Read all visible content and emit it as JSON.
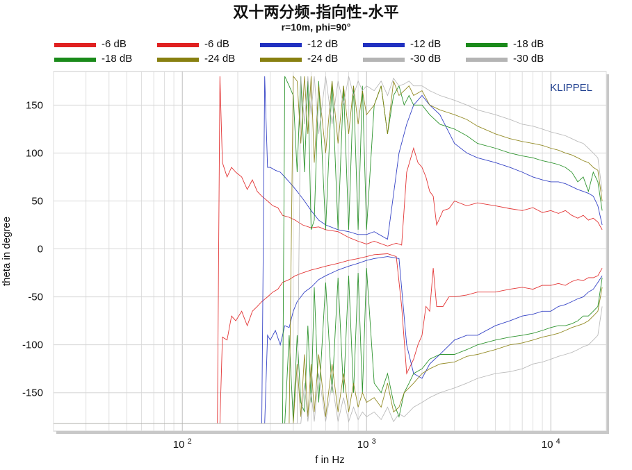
{
  "title": "双十两分频-指向性-水平",
  "subtitle": "r=10m, phi=90°",
  "watermark": "KLIPPEL",
  "legend": [
    {
      "label": "-6 dB",
      "color": "#e02020"
    },
    {
      "label": "-6 dB",
      "color": "#e02020"
    },
    {
      "label": "-12 dB",
      "color": "#2030c0"
    },
    {
      "label": "-12 dB",
      "color": "#2030c0"
    },
    {
      "label": "-18 dB",
      "color": "#1a8a1a"
    },
    {
      "label": "-18 dB",
      "color": "#1a8a1a"
    },
    {
      "label": "-24 dB",
      "color": "#888010"
    },
    {
      "label": "-24 dB",
      "color": "#888010"
    },
    {
      "label": "-30 dB",
      "color": "#b4b4b4"
    },
    {
      "label": "-30 dB",
      "color": "#b4b4b4"
    }
  ],
  "chart_data": {
    "type": "line",
    "xscale": "log",
    "xlabel": "f in Hz",
    "ylabel": "theta in degree",
    "xlim": [
      20,
      20000
    ],
    "ylim": [
      -190,
      185
    ],
    "yticks": [
      150,
      100,
      50,
      0,
      -50,
      -100,
      -150
    ],
    "xticks": [
      {
        "value": 100,
        "base": "10",
        "exp": "2"
      },
      {
        "value": 1000,
        "base": "10",
        "exp": "3"
      },
      {
        "value": 10000,
        "base": "10",
        "exp": "4"
      }
    ],
    "grid": true,
    "series": [
      {
        "name": "-6 dB",
        "color": "#e02020",
        "x": [
          20,
          155,
          160,
          165,
          175,
          185,
          195,
          210,
          225,
          240,
          255,
          270,
          290,
          310,
          330,
          350,
          380,
          410,
          450,
          500,
          550,
          600,
          700,
          800,
          900,
          1000,
          1100,
          1300,
          1450,
          1550,
          1650,
          1800,
          1900,
          2000,
          2100,
          2200,
          2300,
          2400,
          2600,
          2800,
          3000,
          3500,
          4000,
          5000,
          6000,
          7000,
          8000,
          9000,
          10000,
          11000,
          12000,
          13000,
          14000,
          15000,
          16000,
          17000,
          18000,
          19000
        ],
        "y": [
          -182,
          -182,
          180,
          90,
          75,
          85,
          80,
          75,
          62,
          72,
          60,
          55,
          50,
          45,
          43,
          35,
          33,
          30,
          25,
          22,
          23,
          20,
          18,
          12,
          8,
          5,
          8,
          3,
          6,
          4,
          80,
          105,
          90,
          85,
          75,
          60,
          55,
          25,
          40,
          42,
          50,
          45,
          48,
          45,
          42,
          40,
          43,
          38,
          40,
          37,
          40,
          35,
          32,
          35,
          30,
          32,
          28,
          20
        ]
      },
      {
        "name": "-6 dB",
        "color": "#e02020",
        "x": [
          20,
          155,
          160,
          165,
          175,
          185,
          195,
          210,
          225,
          240,
          255,
          270,
          290,
          310,
          330,
          350,
          380,
          410,
          450,
          500,
          550,
          600,
          700,
          800,
          900,
          1000,
          1100,
          1300,
          1450,
          1550,
          1650,
          1800,
          1900,
          2000,
          2100,
          2200,
          2300,
          2400,
          2600,
          2800,
          3000,
          3500,
          4000,
          5000,
          6000,
          7000,
          8000,
          9000,
          10000,
          11000,
          12000,
          13000,
          14000,
          15000,
          16000,
          17000,
          18000,
          19000
        ],
        "y": [
          -182,
          -182,
          -182,
          -92,
          -95,
          -70,
          -75,
          -65,
          -80,
          -65,
          -60,
          -55,
          -50,
          -45,
          -42,
          -35,
          -32,
          -28,
          -25,
          -22,
          -20,
          -18,
          -15,
          -12,
          -10,
          -8,
          -6,
          -5,
          -8,
          -60,
          -130,
          -115,
          -100,
          -90,
          -60,
          -65,
          -20,
          -60,
          -60,
          -50,
          -50,
          -48,
          -45,
          -45,
          -42,
          -40,
          -42,
          -38,
          -38,
          -36,
          -38,
          -34,
          -32,
          -33,
          -30,
          -30,
          -28,
          -20
        ]
      },
      {
        "name": "-12 dB",
        "color": "#2030c0",
        "x": [
          20,
          270,
          280,
          290,
          300,
          320,
          340,
          360,
          380,
          400,
          420,
          440,
          460,
          500,
          550,
          600,
          700,
          800,
          900,
          1000,
          1100,
          1300,
          1500,
          1650,
          1800,
          2000,
          2200,
          2500,
          3000,
          3500,
          4000,
          5000,
          6000,
          7000,
          8000,
          9000,
          10000,
          11000,
          12000,
          13000,
          14000,
          15000,
          16000,
          17000,
          18000,
          19000
        ],
        "y": [
          -182,
          -182,
          180,
          85,
          85,
          82,
          80,
          75,
          70,
          65,
          60,
          55,
          50,
          40,
          30,
          25,
          20,
          18,
          15,
          15,
          18,
          10,
          100,
          130,
          150,
          160,
          150,
          140,
          110,
          100,
          95,
          90,
          85,
          80,
          75,
          72,
          70,
          70,
          68,
          65,
          62,
          60,
          58,
          55,
          45,
          25
        ]
      },
      {
        "name": "-12 dB",
        "color": "#2030c0",
        "x": [
          20,
          270,
          280,
          290,
          300,
          320,
          340,
          360,
          380,
          400,
          420,
          440,
          460,
          500,
          550,
          600,
          700,
          800,
          900,
          1000,
          1100,
          1300,
          1500,
          1650,
          1800,
          2000,
          2200,
          2500,
          3000,
          3500,
          4000,
          5000,
          6000,
          7000,
          8000,
          9000,
          10000,
          11000,
          12000,
          13000,
          14000,
          15000,
          16000,
          17000,
          18000,
          19000
        ],
        "y": [
          -182,
          -182,
          -182,
          -90,
          -95,
          -85,
          -100,
          -80,
          -82,
          -65,
          -55,
          -50,
          -45,
          -40,
          -32,
          -28,
          -22,
          -18,
          -15,
          -12,
          -10,
          -8,
          -10,
          -100,
          -130,
          -135,
          -120,
          -110,
          -95,
          -90,
          -90,
          -80,
          -75,
          -70,
          -68,
          -65,
          -65,
          -60,
          -58,
          -55,
          -52,
          -50,
          -45,
          -42,
          -35,
          -28
        ]
      },
      {
        "name": "-18 dB",
        "color": "#1a8a1a",
        "x": [
          20,
          350,
          360,
          380,
          400,
          420,
          440,
          460,
          480,
          500,
          520,
          550,
          600,
          650,
          700,
          750,
          800,
          850,
          900,
          950,
          1000,
          1100,
          1200,
          1300,
          1400,
          1500,
          1600,
          1700,
          1800,
          2000,
          2200,
          2500,
          3000,
          3500,
          4000,
          5000,
          6000,
          7000,
          8000,
          9000,
          10000,
          11000,
          12000,
          13000,
          14000,
          15000,
          16000,
          17000,
          18000,
          19000
        ],
        "y": [
          -182,
          -182,
          180,
          170,
          160,
          80,
          180,
          80,
          175,
          20,
          30,
          175,
          20,
          175,
          20,
          170,
          20,
          170,
          20,
          170,
          20,
          150,
          170,
          120,
          160,
          170,
          150,
          160,
          150,
          150,
          140,
          130,
          125,
          118,
          110,
          105,
          100,
          97,
          95,
          92,
          90,
          88,
          85,
          80,
          70,
          75,
          60,
          80,
          70,
          40
        ]
      },
      {
        "name": "-18 dB",
        "color": "#1a8a1a",
        "x": [
          20,
          350,
          360,
          380,
          400,
          420,
          440,
          460,
          480,
          500,
          520,
          550,
          600,
          650,
          700,
          750,
          800,
          850,
          900,
          950,
          1000,
          1100,
          1200,
          1300,
          1400,
          1500,
          1600,
          1700,
          1800,
          2000,
          2200,
          2500,
          3000,
          3500,
          4000,
          5000,
          6000,
          7000,
          8000,
          9000,
          10000,
          11000,
          12000,
          13000,
          14000,
          15000,
          16000,
          17000,
          18000,
          19000
        ],
        "y": [
          -182,
          -182,
          -182,
          -90,
          -180,
          -90,
          -160,
          -170,
          -80,
          -160,
          -40,
          -160,
          -35,
          -150,
          -30,
          -150,
          -28,
          -150,
          -25,
          -150,
          -20,
          -140,
          -150,
          -130,
          -160,
          -175,
          -150,
          -140,
          -130,
          -125,
          -115,
          -110,
          -110,
          -105,
          -100,
          -95,
          -92,
          -90,
          -88,
          -85,
          -82,
          -80,
          -80,
          -78,
          -75,
          -70,
          -70,
          -65,
          -60,
          -30
        ]
      },
      {
        "name": "-24 dB",
        "color": "#888010",
        "x": [
          20,
          380,
          400,
          420,
          440,
          460,
          480,
          500,
          520,
          550,
          600,
          650,
          700,
          750,
          800,
          850,
          900,
          950,
          1000,
          1100,
          1200,
          1300,
          1400,
          1500,
          1600,
          1700,
          1800,
          2000,
          2200,
          2500,
          3000,
          3500,
          4000,
          5000,
          6000,
          7000,
          8000,
          9000,
          10000,
          11000,
          12000,
          13000,
          14000,
          15000,
          16000,
          17000,
          18000,
          19000
        ],
        "y": [
          -182,
          -182,
          180,
          175,
          110,
          180,
          120,
          180,
          90,
          170,
          100,
          175,
          110,
          170,
          120,
          170,
          130,
          165,
          140,
          150,
          170,
          120,
          175,
          160,
          165,
          170,
          160,
          165,
          150,
          145,
          140,
          135,
          128,
          120,
          115,
          112,
          110,
          108,
          105,
          103,
          100,
          98,
          95,
          92,
          90,
          85,
          82,
          50
        ]
      },
      {
        "name": "-24 dB",
        "color": "#888010",
        "x": [
          20,
          380,
          400,
          420,
          440,
          460,
          480,
          500,
          520,
          550,
          600,
          650,
          700,
          750,
          800,
          850,
          900,
          950,
          1000,
          1100,
          1200,
          1300,
          1400,
          1500,
          1600,
          1700,
          1800,
          2000,
          2200,
          2500,
          3000,
          3500,
          4000,
          5000,
          6000,
          7000,
          8000,
          9000,
          10000,
          11000,
          12000,
          13000,
          14000,
          15000,
          16000,
          17000,
          18000,
          19000
        ],
        "y": [
          -182,
          -182,
          -182,
          -120,
          -175,
          -110,
          -175,
          -120,
          -170,
          -110,
          -175,
          -120,
          -170,
          -130,
          -170,
          -140,
          -165,
          -150,
          -160,
          -155,
          -165,
          -140,
          -170,
          -165,
          -150,
          -145,
          -140,
          -130,
          -125,
          -120,
          -118,
          -112,
          -110,
          -105,
          -100,
          -98,
          -95,
          -92,
          -90,
          -88,
          -85,
          -82,
          -80,
          -78,
          -75,
          -70,
          -65,
          -40
        ]
      },
      {
        "name": "-30 dB",
        "color": "#b4b4b4",
        "x": [
          20,
          420,
          440,
          460,
          480,
          500,
          520,
          550,
          600,
          650,
          700,
          750,
          800,
          850,
          900,
          950,
          1000,
          1100,
          1200,
          1300,
          1400,
          1500,
          1600,
          1700,
          1800,
          2000,
          2200,
          2500,
          3000,
          3500,
          4000,
          5000,
          6000,
          7000,
          8000,
          9000,
          10000,
          11000,
          12000,
          13000,
          14000,
          15000,
          16000,
          17000,
          18000,
          19000
        ],
        "y": [
          -182,
          -182,
          180,
          130,
          180,
          140,
          180,
          120,
          180,
          130,
          175,
          150,
          180,
          160,
          175,
          165,
          170,
          165,
          175,
          160,
          178,
          170,
          172,
          175,
          170,
          170,
          165,
          160,
          155,
          150,
          145,
          140,
          135,
          130,
          128,
          125,
          122,
          120,
          118,
          115,
          112,
          110,
          105,
          100,
          95,
          60
        ]
      },
      {
        "name": "-30 dB",
        "color": "#b4b4b4",
        "x": [
          20,
          420,
          440,
          460,
          480,
          500,
          520,
          550,
          600,
          650,
          700,
          750,
          800,
          850,
          900,
          950,
          1000,
          1100,
          1200,
          1300,
          1400,
          1500,
          1600,
          1700,
          1800,
          2000,
          2200,
          2500,
          3000,
          3500,
          4000,
          5000,
          6000,
          7000,
          8000,
          9000,
          10000,
          11000,
          12000,
          13000,
          14000,
          15000,
          16000,
          17000,
          18000,
          19000
        ],
        "y": [
          -182,
          -182,
          -182,
          -140,
          -180,
          -150,
          -180,
          -130,
          -180,
          -140,
          -180,
          -155,
          -180,
          -165,
          -178,
          -170,
          -175,
          -170,
          -178,
          -165,
          -180,
          -172,
          -175,
          -170,
          -165,
          -160,
          -155,
          -150,
          -145,
          -140,
          -135,
          -130,
          -128,
          -125,
          -120,
          -118,
          -115,
          -112,
          -110,
          -108,
          -105,
          -102,
          -100,
          -95,
          -90,
          -60
        ]
      }
    ]
  }
}
